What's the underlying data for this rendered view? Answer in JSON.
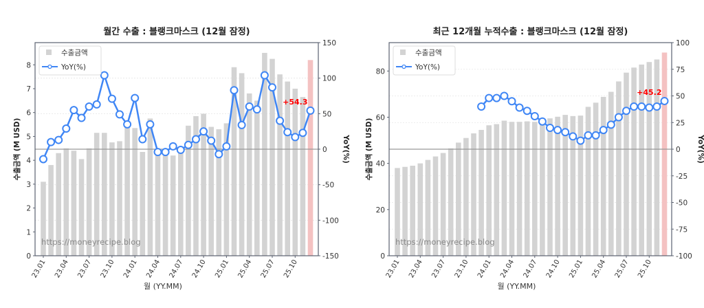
{
  "chart_data": [
    {
      "type": "bar+line",
      "title": "월간 수출 : 블랭크마스크 (12월 잠정)",
      "xlabel": "월 (YY.MM)",
      "ylabel": "수출금액 (M USD)",
      "y2label": "YoY(%)",
      "ylim": [
        0,
        8.93
      ],
      "y2lim": [
        -150,
        150
      ],
      "yticks": [
        0,
        1,
        2,
        3,
        4,
        5,
        6,
        7,
        8
      ],
      "y2ticks": [
        -150,
        -100,
        -50,
        0,
        50,
        100,
        150
      ],
      "categories": [
        "23.01",
        "23.02",
        "23.03",
        "23.04",
        "23.05",
        "23.06",
        "23.07",
        "23.08",
        "23.09",
        "23.10",
        "23.11",
        "23.12",
        "24.01",
        "24.02",
        "24.03",
        "24.04",
        "24.05",
        "24.06",
        "24.07",
        "24.08",
        "24.09",
        "24.10",
        "24.11",
        "24.12",
        "25.01",
        "25.02",
        "25.03",
        "25.04",
        "25.05",
        "25.06",
        "25.07",
        "25.08",
        "25.09",
        "25.10",
        "25.11",
        "25.12"
      ],
      "xtick_labels": [
        "23.01",
        "23.04",
        "23.07",
        "23.10",
        "24.01",
        "24.04",
        "24.07",
        "24.10",
        "25.01",
        "25.04",
        "25.07",
        "25.10"
      ],
      "series": [
        {
          "name": "수출금액",
          "kind": "bar",
          "values": [
            3.1,
            3.8,
            4.3,
            4.5,
            4.4,
            4.05,
            4.5,
            5.15,
            5.15,
            4.75,
            4.8,
            5.5,
            5.35,
            4.35,
            5.75,
            4.2,
            4.2,
            4.2,
            4.4,
            5.45,
            5.85,
            5.95,
            5.4,
            5.3,
            5.55,
            7.9,
            7.65,
            6.8,
            6.5,
            8.5,
            8.25,
            7.6,
            7.3,
            7.0,
            6.65,
            8.2
          ]
        },
        {
          "name": "YoY(%)",
          "kind": "line",
          "axis": "right",
          "values": [
            -14,
            10,
            13,
            29,
            55,
            44,
            60,
            63,
            104,
            71,
            49,
            35,
            72,
            14,
            35,
            -4,
            -4,
            4,
            -1,
            6,
            14,
            25,
            12,
            -7,
            4,
            83,
            34,
            60,
            56,
            104,
            87,
            40,
            24,
            17,
            23,
            54.3
          ]
        }
      ],
      "annotation": "+54.3",
      "watermark": "https://moneyrecipe.blog",
      "legend": "top-left"
    },
    {
      "type": "bar+line",
      "title": "최근 12개월 누적수출 : 블랭크마스크 (12월 잠정)",
      "xlabel": "월 (YY.MM)",
      "ylabel": "수출금액 (M USD)",
      "y2label": "YoY(%)",
      "ylim": [
        0,
        92.3
      ],
      "y2lim": [
        -100,
        100
      ],
      "yticks": [
        0,
        20,
        40,
        60,
        80
      ],
      "y2ticks": [
        -100,
        -75,
        -50,
        -25,
        0,
        25,
        50,
        75,
        100
      ],
      "categories": [
        "23.01",
        "23.02",
        "23.03",
        "23.04",
        "23.05",
        "23.06",
        "23.07",
        "23.08",
        "23.09",
        "23.10",
        "23.11",
        "23.12",
        "24.01",
        "24.02",
        "24.03",
        "24.04",
        "24.05",
        "24.06",
        "24.07",
        "24.08",
        "24.09",
        "24.10",
        "24.11",
        "24.12",
        "25.01",
        "25.02",
        "25.03",
        "25.04",
        "25.05",
        "25.06",
        "25.07",
        "25.08",
        "25.09",
        "25.10",
        "25.11",
        "25.12"
      ],
      "xtick_labels": [
        "23.01",
        "23.04",
        "23.07",
        "23.10",
        "24.01",
        "24.04",
        "24.07",
        "24.10",
        "25.01",
        "25.04",
        "25.07",
        "25.10"
      ],
      "series": [
        {
          "name": "수출금액",
          "kind": "bar",
          "values": [
            38,
            38.5,
            39,
            40,
            41.5,
            43,
            44.5,
            46.5,
            49,
            51,
            53,
            54.5,
            56.5,
            57,
            58.5,
            58,
            58,
            58.2,
            58,
            58.5,
            59.5,
            60.2,
            61,
            60.5,
            60.7,
            64.5,
            66.3,
            68.8,
            71,
            75.5,
            79.3,
            81.5,
            82.8,
            83.9,
            85,
            88
          ]
        },
        {
          "name": "YoY(%)",
          "kind": "line",
          "axis": "right",
          "values": [
            null,
            null,
            null,
            null,
            null,
            null,
            null,
            null,
            null,
            null,
            null,
            40,
            48,
            48,
            50,
            45,
            39,
            36,
            31,
            26,
            20,
            18,
            16,
            12,
            8,
            13,
            13,
            18,
            23,
            30,
            36,
            40,
            40,
            39,
            40,
            45.2
          ]
        }
      ],
      "annotation": "+45.2",
      "watermark": "https://moneyrecipe.blog",
      "legend": "top-left"
    }
  ],
  "colors": {
    "bar": "#d3d3d3",
    "bar_highlight": "#f4c2c2",
    "line": "#3f86f5",
    "annotation": "#ff0000",
    "axis": "#5a6270"
  }
}
